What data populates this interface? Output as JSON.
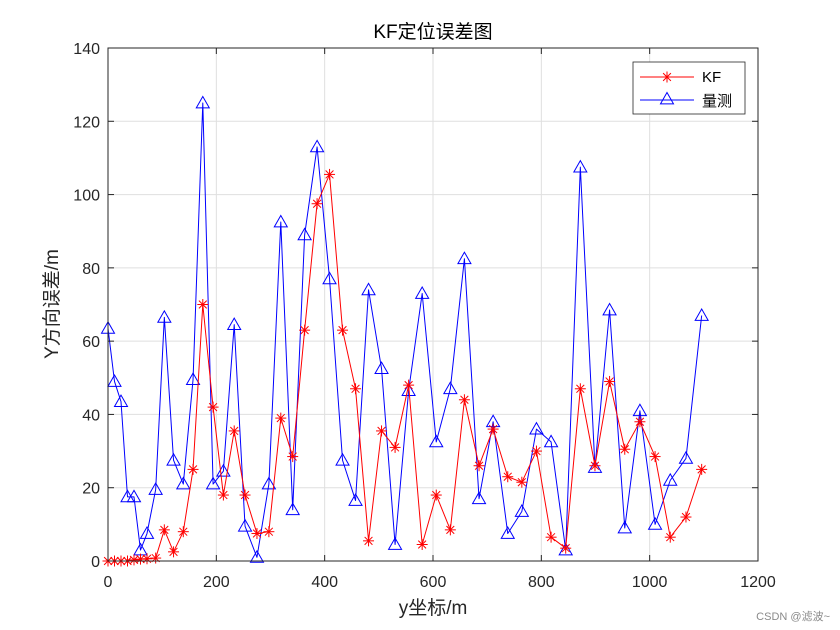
{
  "watermark": "CSDN @滤波~",
  "chart_data": {
    "type": "line",
    "title": "KF定位误差图",
    "xlabel": "y坐标/m",
    "ylabel": "Y方向误差/m",
    "xlim": [
      0,
      1200
    ],
    "ylim": [
      0,
      140
    ],
    "xticks": [
      0,
      200,
      400,
      600,
      800,
      1000,
      1200
    ],
    "yticks": [
      0,
      20,
      40,
      60,
      80,
      100,
      120,
      140
    ],
    "grid": true,
    "legend_position": "top-right",
    "series": [
      {
        "name": "KF",
        "color": "#ff0000",
        "marker": "asterisk",
        "x": [
          0,
          12,
          24,
          36,
          48,
          60,
          72,
          88,
          104,
          121,
          139,
          157,
          175,
          194,
          213,
          233,
          253,
          275,
          297,
          319,
          341,
          363,
          386,
          409,
          433,
          457,
          481,
          505,
          530,
          555,
          580,
          606,
          632,
          658,
          685,
          711,
          738,
          764,
          791,
          818,
          845,
          872,
          899,
          926,
          954,
          982,
          1010,
          1038,
          1067,
          1096
        ],
        "y": [
          0,
          0,
          0,
          0,
          0.3,
          0.5,
          0.6,
          0.8,
          8.5,
          2.5,
          8,
          25,
          70,
          42,
          18,
          35.5,
          18,
          7.5,
          8,
          39,
          28.5,
          63,
          97.5,
          105.5,
          63,
          47,
          5.5,
          35.5,
          31,
          48,
          4.5,
          18,
          8.5,
          44,
          26,
          36,
          23,
          21.5,
          30,
          6.5,
          3.5,
          47,
          26,
          49,
          30.5,
          38,
          28.5,
          6.5,
          12,
          25
        ]
      },
      {
        "name": "量测",
        "color": "#0000ff",
        "marker": "triangle",
        "x": [
          0,
          12,
          24,
          36,
          48,
          60,
          72,
          88,
          104,
          121,
          139,
          157,
          175,
          194,
          213,
          233,
          253,
          275,
          297,
          319,
          341,
          363,
          386,
          409,
          433,
          457,
          481,
          505,
          530,
          555,
          580,
          606,
          632,
          658,
          685,
          711,
          738,
          764,
          791,
          818,
          845,
          872,
          899,
          926,
          954,
          982,
          1010,
          1038,
          1067,
          1096
        ],
        "y": [
          63.5,
          49,
          43.5,
          17.5,
          17.5,
          3,
          7.5,
          19.5,
          66.5,
          27.5,
          21,
          49.5,
          125,
          21,
          24.5,
          64.5,
          9.5,
          1,
          21,
          92.5,
          14,
          89,
          113,
          77,
          27.5,
          16.5,
          74,
          52.5,
          4.5,
          46.5,
          73,
          32.5,
          47,
          82.5,
          17,
          38,
          7.5,
          13.5,
          36,
          32.5,
          3,
          107.5,
          25.5,
          68.5,
          9,
          41,
          10,
          22,
          28,
          67
        ]
      }
    ]
  }
}
